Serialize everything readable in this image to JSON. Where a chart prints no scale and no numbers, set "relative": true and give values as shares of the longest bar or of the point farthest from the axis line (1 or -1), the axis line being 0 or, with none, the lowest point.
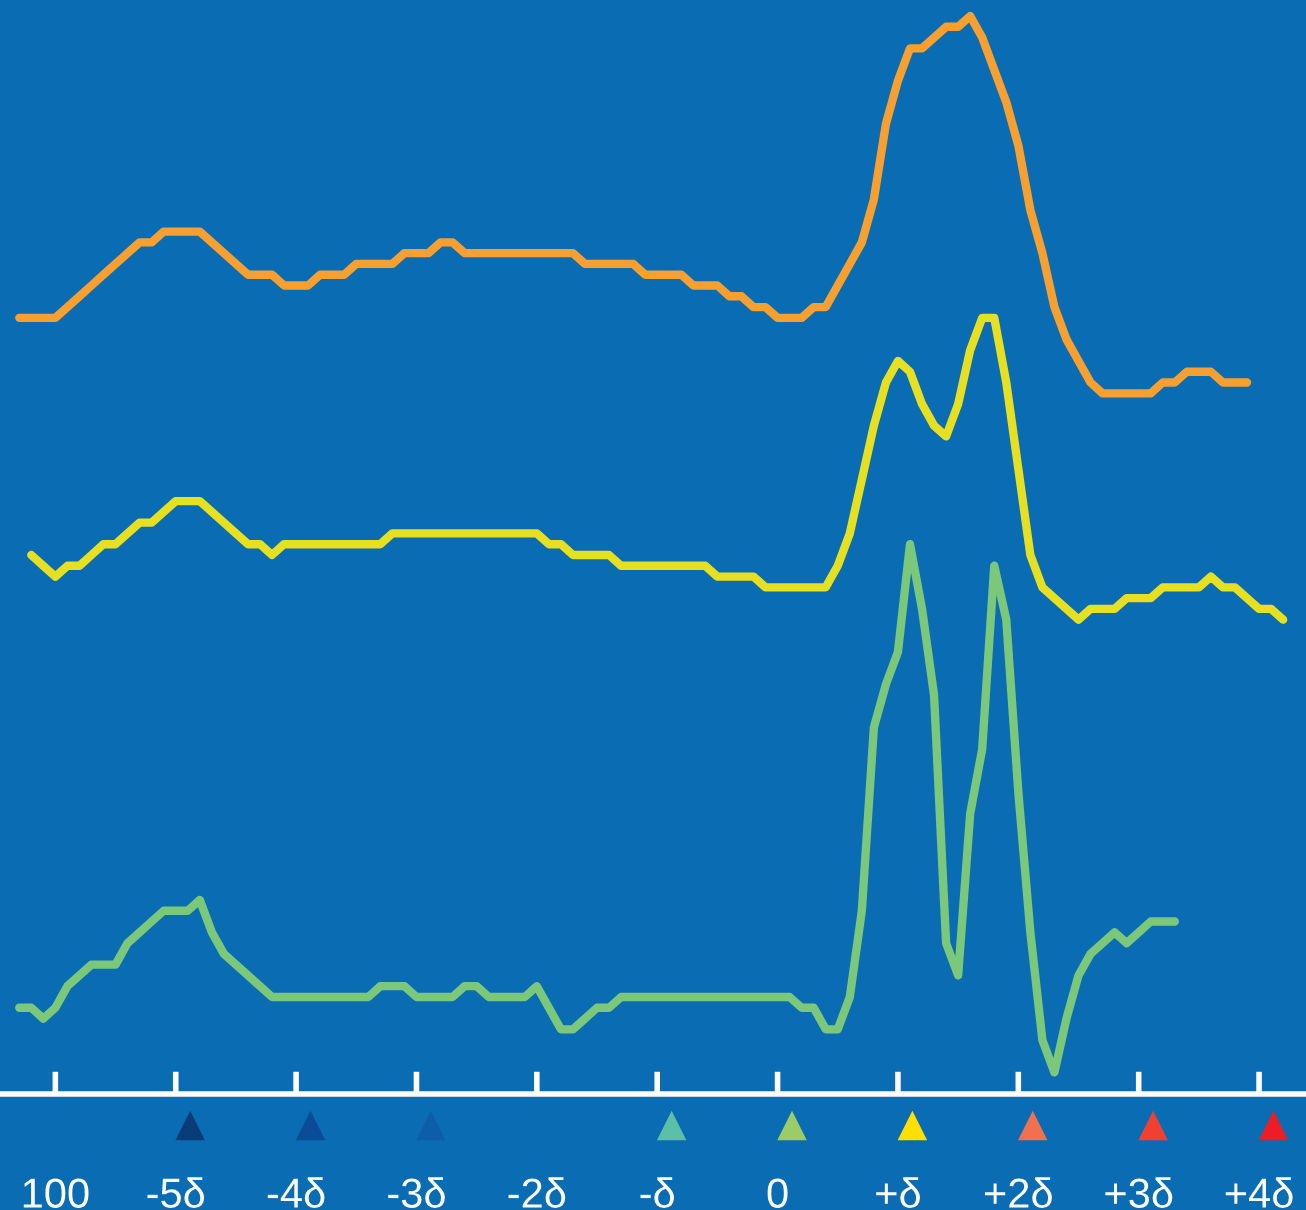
{
  "chart_data": {
    "type": "line",
    "relative": true,
    "line_style": "solid",
    "marker": "none",
    "grid": false,
    "legend": false,
    "tick_labels": "x",
    "categories": [
      null,
      null,
      null,
      "100",
      null,
      null,
      null,
      null,
      null,
      null,
      null,
      null,
      null,
      "-5δ",
      null,
      null,
      null,
      null,
      null,
      null,
      null,
      null,
      null,
      "-4δ",
      null,
      null,
      null,
      null,
      null,
      null,
      null,
      null,
      null,
      "-3δ",
      null,
      null,
      null,
      null,
      null,
      null,
      null,
      null,
      null,
      "-2δ",
      null,
      null,
      null,
      null,
      null,
      null,
      null,
      null,
      null,
      "-δ",
      null,
      null,
      null,
      null,
      null,
      null,
      null,
      null,
      null,
      "0",
      null,
      null,
      null,
      null,
      null,
      null,
      null,
      null,
      null,
      "+δ",
      null,
      null,
      null,
      null,
      null,
      null,
      null,
      null,
      null,
      "+2δ",
      null,
      null,
      null,
      null,
      null,
      null,
      null,
      null,
      null,
      "+3δ",
      null,
      null,
      null,
      null,
      null,
      null,
      null,
      null,
      null,
      "+4δ",
      null,
      null
    ],
    "series": [
      {
        "color": "#f7a030",
        "values": [
          0.72,
          0.72,
          0.72,
          0.72,
          0.73,
          0.74,
          0.75,
          0.76,
          0.77,
          0.78,
          0.79,
          0.79,
          0.8,
          0.8,
          0.8,
          0.8,
          0.79,
          0.78,
          0.77,
          0.76,
          0.76,
          0.76,
          0.75,
          0.75,
          0.75,
          0.76,
          0.76,
          0.76,
          0.77,
          0.77,
          0.77,
          0.77,
          0.78,
          0.78,
          0.78,
          0.79,
          0.79,
          0.78,
          0.78,
          0.78,
          0.78,
          0.78,
          0.78,
          0.78,
          0.78,
          0.78,
          0.78,
          0.77,
          0.77,
          0.77,
          0.77,
          0.77,
          0.76,
          0.76,
          0.76,
          0.76,
          0.75,
          0.75,
          0.75,
          0.74,
          0.74,
          0.73,
          0.73,
          0.72,
          0.72,
          0.72,
          0.73,
          0.73,
          0.75,
          0.77,
          0.79,
          0.83,
          0.9,
          0.94,
          0.97,
          0.97,
          0.98,
          0.99,
          0.99,
          1.0,
          0.98,
          0.95,
          0.92,
          0.88,
          0.82,
          0.78,
          0.73,
          0.7,
          0.68,
          0.66,
          0.65,
          0.65,
          0.65,
          0.65,
          0.65,
          0.66,
          0.66,
          0.67,
          0.67,
          0.67,
          0.66,
          0.66,
          0.66,
          null,
          null,
          null
        ]
      },
      {
        "color": "#e6e020",
        "values": [
          null,
          0.5,
          0.49,
          0.48,
          0.49,
          0.49,
          0.5,
          0.51,
          0.51,
          0.52,
          0.53,
          0.53,
          0.54,
          0.55,
          0.55,
          0.55,
          0.54,
          0.53,
          0.52,
          0.51,
          0.51,
          0.5,
          0.51,
          0.51,
          0.51,
          0.51,
          0.51,
          0.51,
          0.51,
          0.51,
          0.51,
          0.52,
          0.52,
          0.52,
          0.52,
          0.52,
          0.52,
          0.52,
          0.52,
          0.52,
          0.52,
          0.52,
          0.52,
          0.52,
          0.51,
          0.51,
          0.5,
          0.5,
          0.5,
          0.5,
          0.49,
          0.49,
          0.49,
          0.49,
          0.49,
          0.49,
          0.49,
          0.49,
          0.48,
          0.48,
          0.48,
          0.48,
          0.47,
          0.47,
          0.47,
          0.47,
          0.47,
          0.47,
          0.49,
          0.52,
          0.57,
          0.62,
          0.66,
          0.68,
          0.67,
          0.64,
          0.62,
          0.61,
          0.64,
          0.69,
          0.72,
          0.72,
          0.66,
          0.58,
          0.5,
          0.47,
          0.46,
          0.45,
          0.44,
          0.45,
          0.45,
          0.45,
          0.46,
          0.46,
          0.46,
          0.47,
          0.47,
          0.47,
          0.47,
          0.48,
          0.47,
          0.47,
          0.46,
          0.45,
          0.45,
          0.44
        ]
      },
      {
        "color": "#7cc87a",
        "values": [
          0.08,
          0.08,
          0.07,
          0.08,
          0.1,
          0.11,
          0.12,
          0.12,
          0.12,
          0.14,
          0.15,
          0.16,
          0.17,
          0.17,
          0.17,
          0.18,
          0.15,
          0.13,
          0.12,
          0.11,
          0.1,
          0.09,
          0.09,
          0.09,
          0.09,
          0.09,
          0.09,
          0.09,
          0.09,
          0.09,
          0.1,
          0.1,
          0.1,
          0.09,
          0.09,
          0.09,
          0.09,
          0.1,
          0.1,
          0.09,
          0.09,
          0.09,
          0.09,
          0.1,
          0.08,
          0.06,
          0.06,
          0.07,
          0.08,
          0.08,
          0.09,
          0.09,
          0.09,
          0.09,
          0.09,
          0.09,
          0.09,
          0.09,
          0.09,
          0.09,
          0.09,
          0.09,
          0.09,
          0.09,
          0.09,
          0.08,
          0.08,
          0.06,
          0.06,
          0.09,
          0.17,
          0.34,
          0.38,
          0.41,
          0.51,
          0.45,
          0.37,
          0.14,
          0.11,
          0.26,
          0.32,
          0.49,
          0.44,
          0.28,
          0.15,
          0.05,
          0.02,
          0.07,
          0.11,
          0.13,
          0.14,
          0.15,
          0.14,
          0.15,
          0.16,
          0.16,
          0.16,
          null,
          null,
          null,
          null,
          null,
          null,
          null,
          null,
          null
        ]
      }
    ]
  }
}
